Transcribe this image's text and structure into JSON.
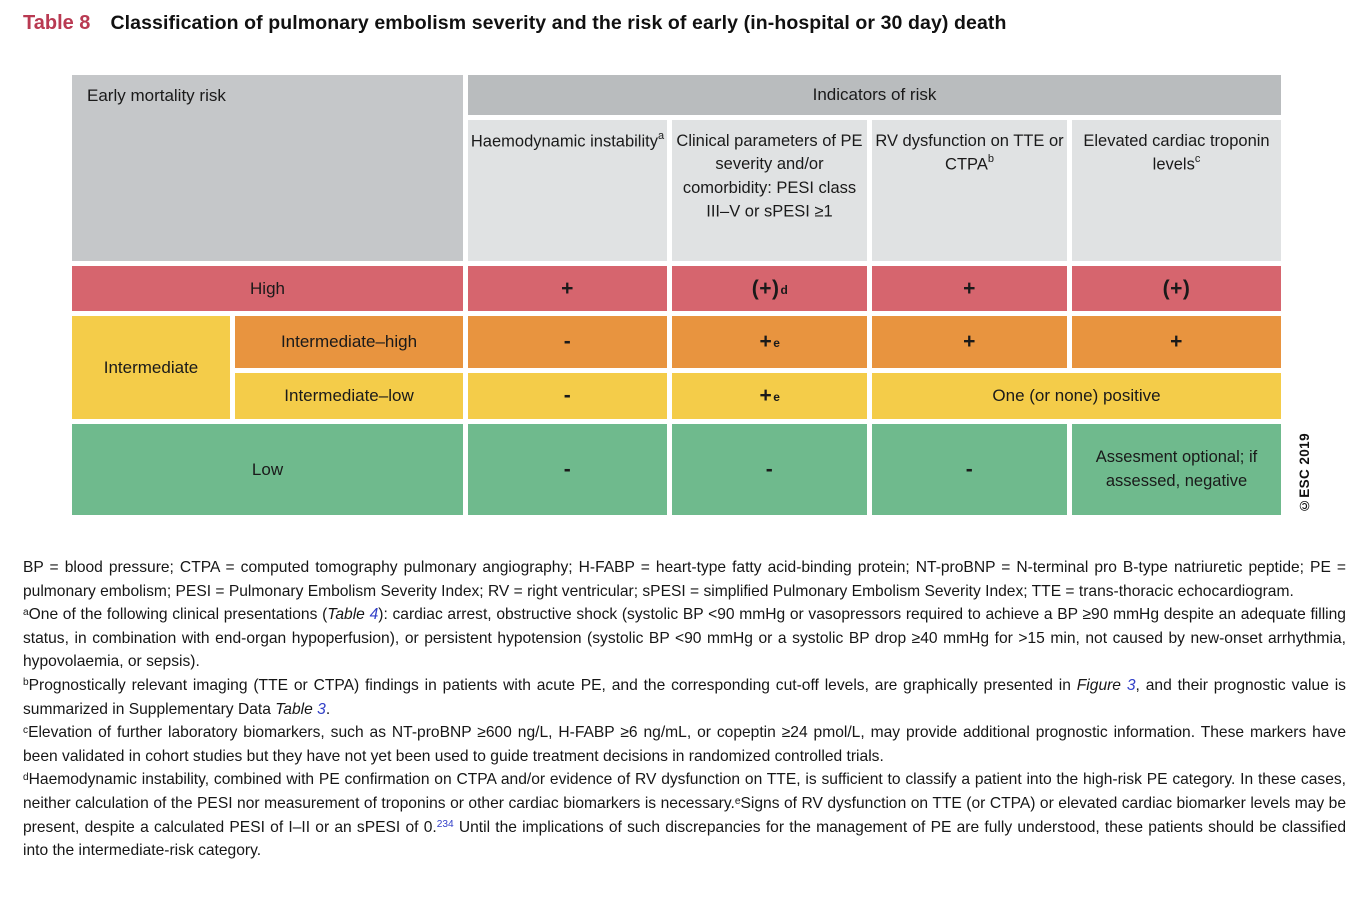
{
  "title": {
    "tag": "Table 8",
    "text": "Classification of pulmonary embolism severity and the risk of early (in-hospital or 30 day) death"
  },
  "colors": {
    "title_tag": "#b93a52",
    "high_risk": "#d6656e",
    "intermediate_high": "#e8943f",
    "intermediate_low": "#f4cc49",
    "low_risk": "#6fba8d",
    "header_band": "#b9bcbe",
    "corner_header": "#c5c7c9",
    "subheader": "#e0e2e3",
    "link_blue": "#3240c8"
  },
  "table": {
    "corner": "Early mortality risk",
    "group": "Indicators of risk",
    "col_headers": [
      {
        "text": "Haemodynamic instability",
        "sup": "a"
      },
      {
        "text": "Clinical parameters of PE severity and/or comorbidity: PESI class III–V or sPESI ≥1",
        "sup": ""
      },
      {
        "text": "RV dysfunction on TTE or CTPA",
        "sup": "b"
      },
      {
        "text": "Elevated cardiac troponin levels",
        "sup": "c"
      }
    ],
    "rows": {
      "high": {
        "label": "High",
        "cells": [
          {
            "v": "+",
            "sup": ""
          },
          {
            "v": "(+)",
            "sup": "d"
          },
          {
            "v": "+",
            "sup": ""
          },
          {
            "v": "(+)",
            "sup": ""
          }
        ]
      },
      "intermediate": {
        "label": "Intermediate"
      },
      "intermediate_high": {
        "label": "Intermediate–high",
        "cells": [
          {
            "v": "-",
            "sup": ""
          },
          {
            "v": "+",
            "sup": "e"
          },
          {
            "v": "+",
            "sup": ""
          },
          {
            "v": "+",
            "sup": ""
          }
        ]
      },
      "intermediate_low": {
        "label": "Intermediate–low",
        "cells": [
          {
            "v": "-",
            "sup": ""
          },
          {
            "v": "+",
            "sup": "e"
          }
        ],
        "merged": "One (or none) positive"
      },
      "low": {
        "label": "Low",
        "cells": [
          {
            "v": "-",
            "sup": ""
          },
          {
            "v": "-",
            "sup": ""
          },
          {
            "v": "-",
            "sup": ""
          }
        ],
        "note": "Assesment optional; if assessed, negative"
      }
    },
    "credit": "©ESC 2019"
  },
  "footnotes": {
    "abbreviations": [
      {
        "t": "BP = blood pressure; CTPA = computed tomography pulmonary angiography; H-FABP = heart-type fatty acid-binding protein; NT-proBNP = N-terminal pro B-type natriuretic peptide; PE = pulmonary embolism; PESI = Pulmonary Embolism Severity Index; RV = right ventricular; sPESI = simplified Pulmonary Embolism Severity Index; TTE = trans-thoracic echocardiogram.",
        "s": ""
      }
    ],
    "a": [
      {
        "t": "a",
        "s": "sup"
      },
      {
        "t": "One of the following clinical presentations (",
        "s": ""
      },
      {
        "t": "Table ",
        "s": "i"
      },
      {
        "t": "4",
        "s": "ib"
      },
      {
        "t": "): cardiac arrest, obstructive shock (systolic BP <90 mmHg or vasopressors required to achieve a BP ≥90 mmHg despite an adequate filling status, in combination with end-organ hypoperfusion), or persistent hypotension (systolic BP <90 mmHg or a systolic BP drop ≥40 mmHg for >15 min, not caused by new-onset arrhythmia, hypovolaemia, or sepsis).",
        "s": ""
      }
    ],
    "b": [
      {
        "t": "b",
        "s": "sup"
      },
      {
        "t": "Prognostically relevant imaging (TTE or CTPA) findings in patients with acute PE, and the corresponding cut-off levels, are graphically presented in ",
        "s": ""
      },
      {
        "t": "Figure ",
        "s": "i"
      },
      {
        "t": "3",
        "s": "ib"
      },
      {
        "t": ", and their prognostic value is summarized in Supplementary Data ",
        "s": ""
      },
      {
        "t": "Table ",
        "s": "i"
      },
      {
        "t": "3",
        "s": "ib"
      },
      {
        "t": ".",
        "s": ""
      }
    ],
    "c": [
      {
        "t": "c",
        "s": "sup"
      },
      {
        "t": "Elevation of further laboratory biomarkers, such as NT-proBNP ≥600 ng/L, H-FABP ≥6 ng/mL, or copeptin ≥24 pmol/L, may provide additional prognostic information. These markers have been validated in cohort studies but they have not yet been used to guide treatment decisions in randomized controlled trials.",
        "s": ""
      }
    ],
    "d": [
      {
        "t": "d",
        "s": "sup"
      },
      {
        "t": "Haemodynamic instability, combined with PE confirmation on CTPA and/or evidence of RV dysfunction on TTE, is sufficient to classify a patient into the high-risk PE category. In these cases, neither calculation of the PESI nor measurement of troponins or other cardiac biomarkers is necessary.",
        "s": ""
      },
      {
        "t": "e",
        "s": "sup"
      },
      {
        "t": "Signs of RV dysfunction on TTE (or CTPA) or elevated cardiac biomarker levels may be present, despite a calculated PESI of I–II or an sPESI of 0.",
        "s": ""
      },
      {
        "t": "234",
        "s": "supb"
      },
      {
        "t": " Until the implications of such discrepancies for the management of PE are fully understood, these patients should be classified into the intermediate-risk category.",
        "s": ""
      }
    ]
  }
}
